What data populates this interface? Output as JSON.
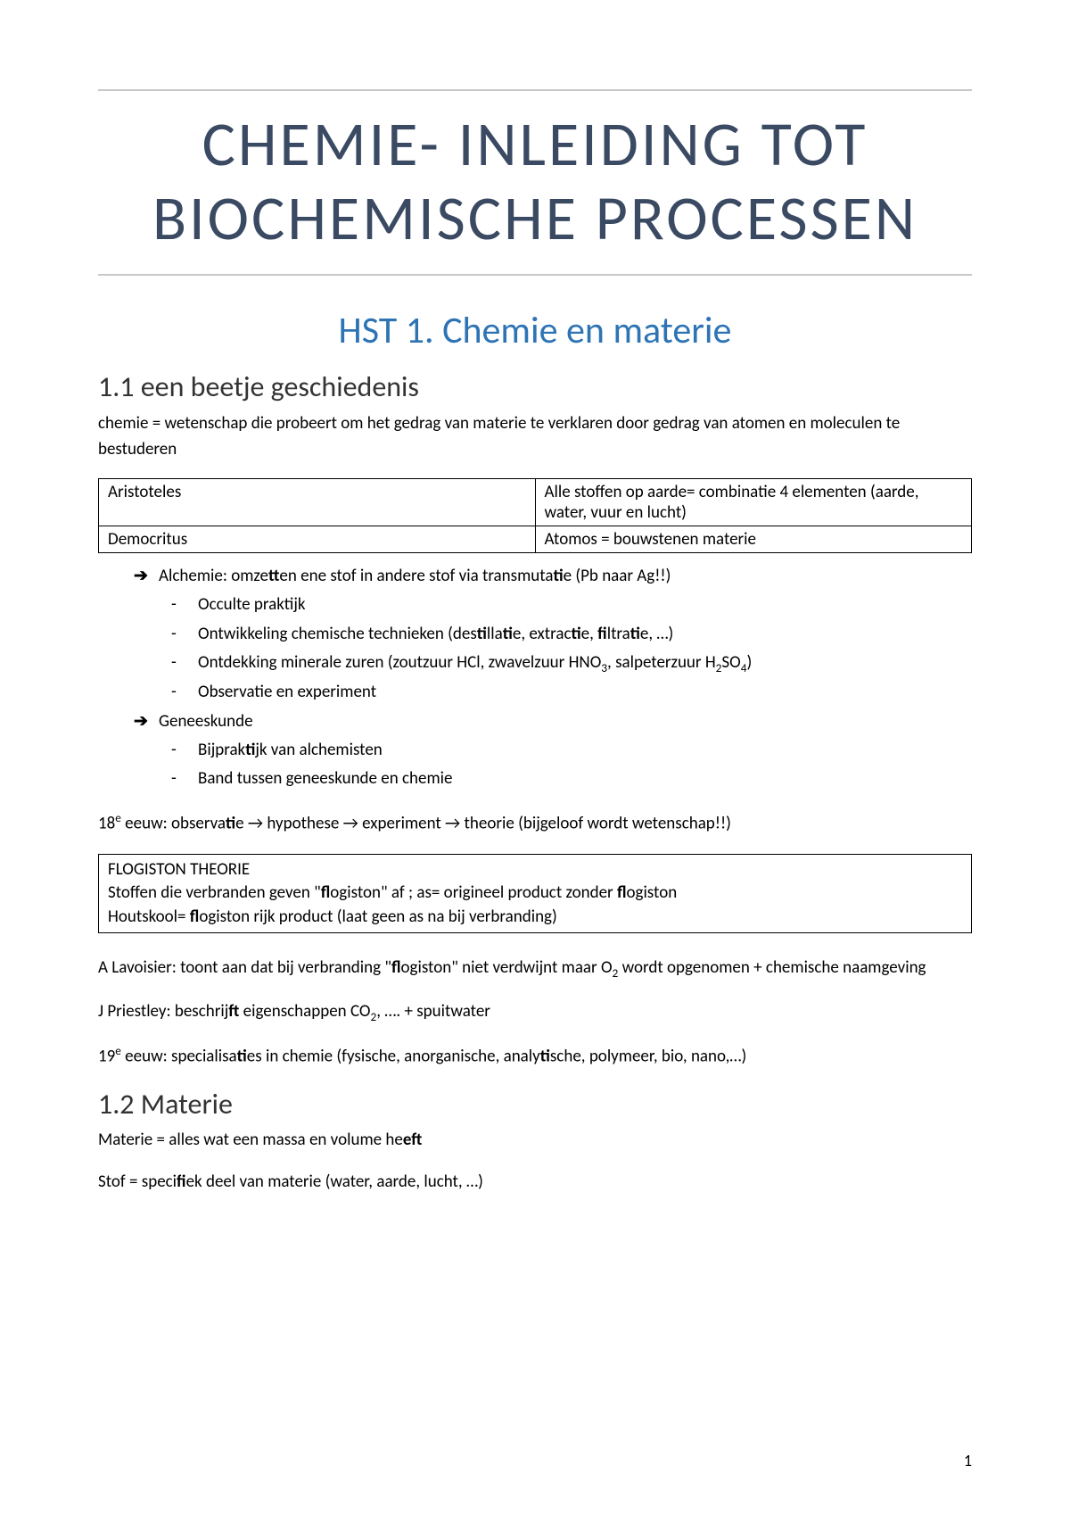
{
  "colors": {
    "title_color": "#3b4a63",
    "chapter_color": "#2e74b5",
    "body_color": "#000000",
    "rule_color": "#c8c8c8",
    "background": "#ffffff"
  },
  "typography": {
    "title_fontsize": 70,
    "chapter_fontsize": 42,
    "section_fontsize": 32,
    "body_fontsize": 19,
    "title_letterspacing": 3
  },
  "title": "CHEMIE- INLEIDING TOT BIOCHEMISCHE PROCESSEN",
  "chapter": "HST 1. Chemie en materie",
  "section_1_1": {
    "heading": "1.1  een beetje geschiedenis",
    "intro": "chemie = wetenschap die probeert om het gedrag van materie te verklaren door gedrag van atomen en moleculen te bestuderen",
    "table": {
      "rows": [
        [
          "Aristoteles",
          "Alle stoffen op aarde= combinatie 4 elementen (aarde, water, vuur en lucht)"
        ],
        [
          "Democritus",
          "Atomos = bouwstenen materie"
        ]
      ]
    },
    "bullets": [
      {
        "arrow": "➔",
        "text_html": "Alchemie: omze<b>tt</b>en ene stof in andere stof via transmuta<b>ti</b>e (Pb naar Ag!!)",
        "sub": [
          "Occulte praktijk",
          "Ontwikkeling chemische technieken (des<b>ti</b>lla<b>ti</b>e, extrac<b>ti</b>e, <b>fi</b>ltra<b>ti</b>e, …)",
          "Ontdekking minerale zuren (zoutzuur HCl, zwavelzuur HNO<sub>3</sub>, salpeterzuur H<sub>2</sub>SO<sub>4</sub>)",
          "Observatie en experiment"
        ]
      },
      {
        "arrow": "➔",
        "text_html": "Geneeskunde",
        "sub": [
          "Bijprak<b>ti</b>jk van alchemisten",
          "Band tussen geneeskunde en chemie"
        ]
      }
    ],
    "line_18e": "18<sup>e</sup> eeuw: observa<b>ti</b>e → hypothese → experiment → theorie (bijgeloof wordt wetenschap!!)",
    "box_lines": [
      "FLOGISTON THEORIE",
      "Stoffen die verbranden geven \"<b>fl</b>ogiston\" af ; as= origineel product zonder <b>fl</b>ogiston",
      "Houtskool= <b>fl</b>ogiston rijk product (laat geen as na bij verbranding)"
    ],
    "lavoisier": "A Lavoisier: toont aan dat bij verbranding \"<b>fl</b>ogiston\" niet verdwijnt maar O<sub>2</sub> wordt opgenomen + chemische naamgeving",
    "priestley": "J Priestley: beschrij<b>ft</b> eigenschappen CO<sub>2</sub>, …. + spuitwater",
    "line_19e": "19<sup>e</sup> eeuw: specialisa<b>ti</b>es in chemie (fysische, anorganische, analy<b>ti</b>sche, polymeer, bio, nano,…)"
  },
  "section_1_2": {
    "heading": "1.2  Materie",
    "line1": "Materie = alles wat een massa en volume he<b>eft</b>",
    "line2": "Stof = speci<b>fi</b>ek deel van materie (water, aarde, lucht, …)"
  },
  "page_number": "1"
}
